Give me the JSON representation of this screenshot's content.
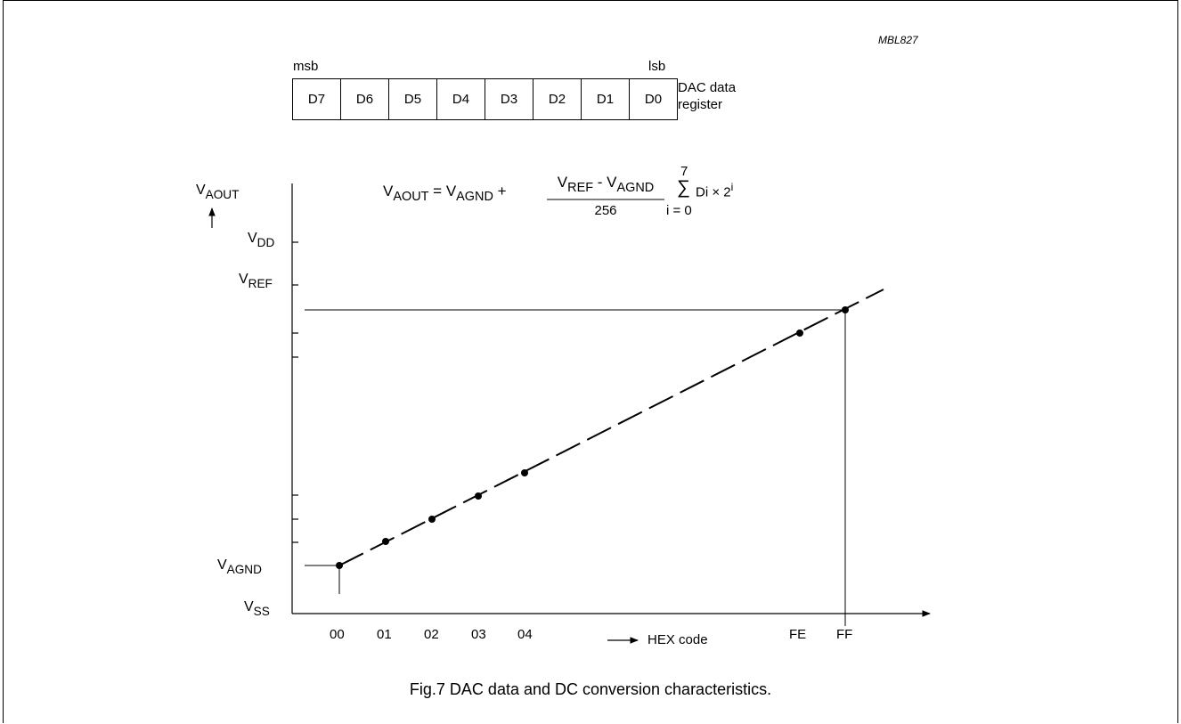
{
  "figure_id": "MBL827",
  "register": {
    "msb_label": "msb",
    "lsb_label": "lsb",
    "bits": [
      "D7",
      "D6",
      "D5",
      "D4",
      "D3",
      "D2",
      "D1",
      "D0"
    ],
    "name_line1": "DAC data",
    "name_line2": "register"
  },
  "formula": {
    "lhs_main": "V",
    "lhs_sub": "AOUT",
    "eq": " = ",
    "term1_main": "V",
    "term1_sub": "AGND",
    "plus": " + ",
    "num_a_main": "V",
    "num_a_sub": "REF",
    "num_minus": " - ",
    "num_b_main": "V",
    "num_b_sub": "AGND",
    "denominator": "256",
    "sum_upper": "7",
    "sum_symbol": "∑",
    "sum_lower": "i = 0",
    "summand": "Di × 2",
    "summand_exp": "i"
  },
  "y_axis": {
    "label_main": "V",
    "label_sub": "AOUT",
    "levels": [
      {
        "main": "V",
        "sub": "DD"
      },
      {
        "main": "V",
        "sub": "REF"
      },
      {
        "main": "V",
        "sub": "AGND"
      },
      {
        "main": "V",
        "sub": "SS"
      }
    ]
  },
  "x_axis": {
    "label": "HEX code",
    "ticks": [
      "00",
      "01",
      "02",
      "03",
      "04",
      "FE",
      "FF"
    ]
  },
  "caption": "Fig.7  DAC data and DC conversion characteristics."
}
